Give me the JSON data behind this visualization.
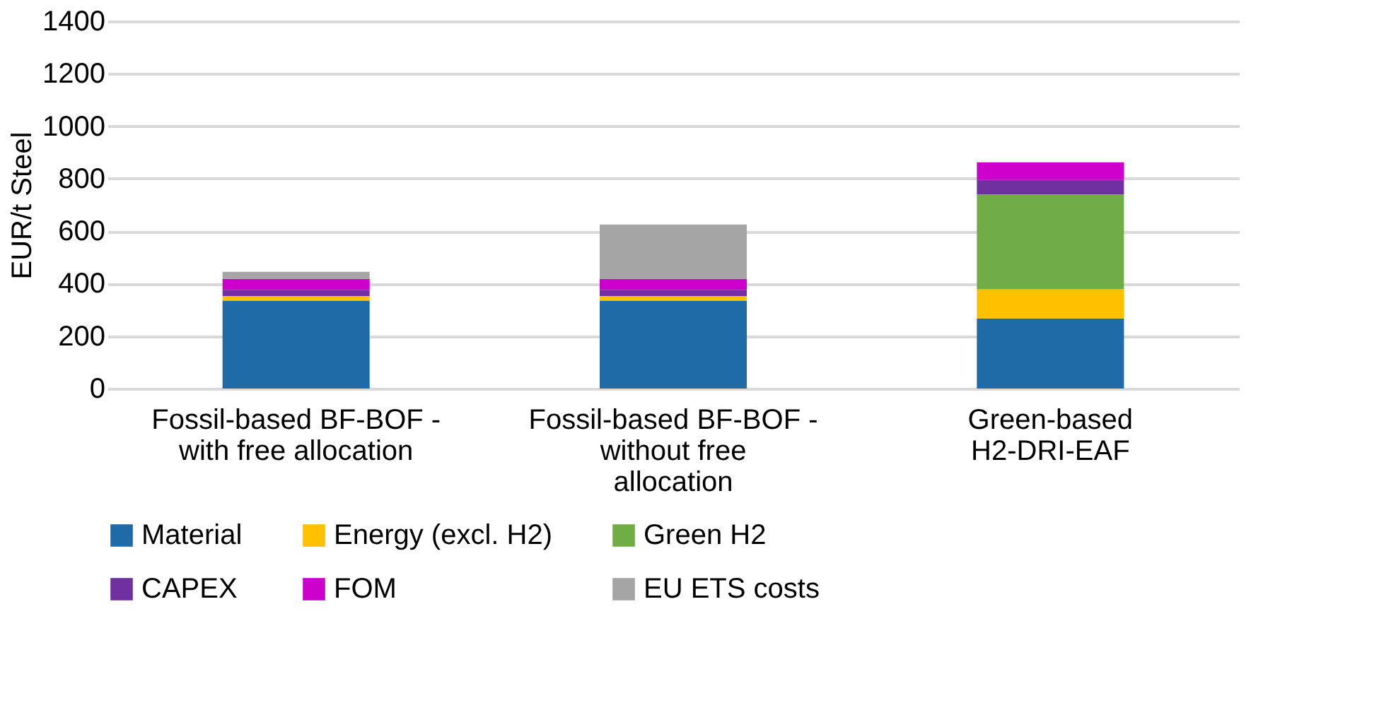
{
  "chart_data": {
    "type": "bar",
    "stacked": true,
    "ylabel": "EUR/t Steel",
    "categories": [
      "Fossil-based BF-BOF - with free allocation",
      "Fossil-based BF-BOF - without free allocation",
      "Green-based H2-DRI-EAF"
    ],
    "series": [
      {
        "name": "Material",
        "color": "#1f6ba7",
        "values": [
          335,
          335,
          267
        ]
      },
      {
        "name": "Energy (excl. H2)",
        "color": "#ffc000",
        "values": [
          18,
          18,
          111
        ]
      },
      {
        "name": "Green H2",
        "color": "#70ad47",
        "values": [
          0,
          0,
          362
        ]
      },
      {
        "name": "CAPEX",
        "color": "#7030a0",
        "values": [
          23,
          23,
          55
        ]
      },
      {
        "name": "FOM",
        "color": "#cc00cc",
        "values": [
          42,
          42,
          67
        ]
      },
      {
        "name": "EU ETS costs",
        "color": "#a5a5a5",
        "values": [
          27,
          207,
          0
        ]
      }
    ],
    "ylim": [
      0,
      1400
    ],
    "yticks": [
      0,
      200,
      400,
      600,
      800,
      1000,
      1200,
      1400
    ],
    "grid": "y",
    "legend": "bottom"
  }
}
